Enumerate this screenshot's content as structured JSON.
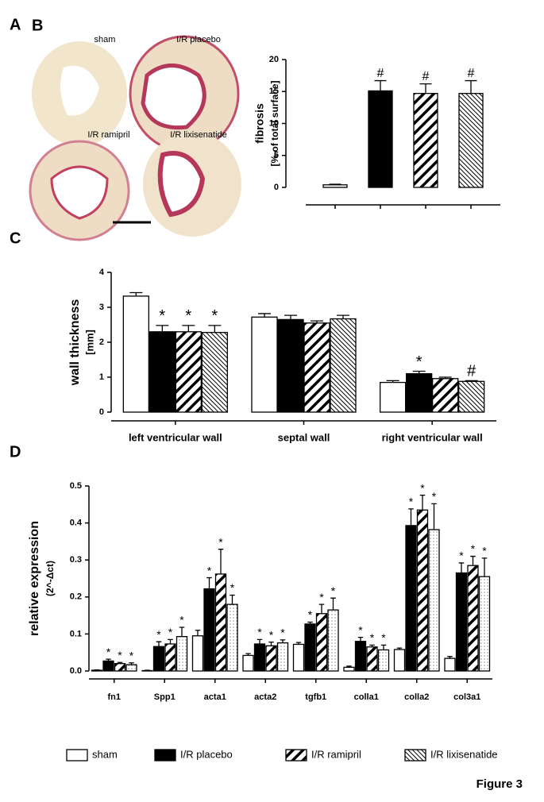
{
  "panel_a": {
    "panel_label": "A",
    "labels": [
      "sham",
      "I/R placebo",
      "I/R ramipril",
      "I/R lixisenatide"
    ]
  },
  "figure_label": "Figure 3",
  "chart_data": [
    {
      "type": "bar",
      "panel_label": "B",
      "ylabel": [
        "fibrosis",
        "[% of total surface]"
      ],
      "categories": [
        null
      ],
      "ylim": [
        0,
        20
      ],
      "yticks": [
        0,
        5,
        10,
        15,
        20
      ],
      "series": [
        {
          "pattern": "white",
          "values": [
            0.4
          ],
          "errors": [
            0.1
          ],
          "annotations": [
            null
          ]
        },
        {
          "pattern": "black",
          "values": [
            15.1
          ],
          "errors": [
            1.6
          ],
          "annotations": [
            "#"
          ]
        },
        {
          "pattern": "hatch",
          "values": [
            14.7
          ],
          "errors": [
            1.5
          ],
          "annotations": [
            "#"
          ]
        },
        {
          "pattern": "fine",
          "values": [
            14.7
          ],
          "errors": [
            2.0
          ],
          "annotations": [
            "#"
          ]
        }
      ]
    },
    {
      "type": "bar",
      "panel_label": "C",
      "ylabel": [
        "wall thickness",
        "[mm]"
      ],
      "categories": [
        "left ventricular wall",
        "septal wall",
        "right ventricular wall"
      ],
      "ylim": [
        0,
        4
      ],
      "yticks": [
        0,
        1,
        2,
        3,
        4
      ],
      "series": [
        {
          "name": "sham",
          "pattern": "white",
          "values": [
            3.32,
            2.72,
            0.85
          ],
          "errors": [
            0.1,
            0.1,
            0.05
          ],
          "annotations": [
            null,
            null,
            null
          ]
        },
        {
          "name": "I/R placebo",
          "pattern": "black",
          "values": [
            2.3,
            2.65,
            1.1
          ],
          "errors": [
            0.18,
            0.12,
            0.07
          ],
          "annotations": [
            "*",
            null,
            "*"
          ]
        },
        {
          "name": "I/R ramipril",
          "pattern": "hatch",
          "values": [
            2.3,
            2.55,
            0.96
          ],
          "errors": [
            0.18,
            0.06,
            0.04
          ],
          "annotations": [
            "*",
            null,
            null
          ]
        },
        {
          "name": "I/R lixisenatide",
          "pattern": "fine",
          "values": [
            2.28,
            2.67,
            0.88
          ],
          "errors": [
            0.2,
            0.1,
            0.02
          ],
          "annotations": [
            "*",
            null,
            "#"
          ]
        }
      ]
    },
    {
      "type": "bar",
      "panel_label": "D",
      "ylabel": [
        "relative expression",
        "(2^-Δct)"
      ],
      "categories": [
        "fn1",
        "Spp1",
        "acta1",
        "acta2",
        "tgfb1",
        "colla1",
        "colla2",
        "col3a1"
      ],
      "ylim": [
        0,
        0.5
      ],
      "yticks": [
        {
          "value": 0,
          "label": "0.0"
        },
        0.1,
        0.2,
        0.3,
        0.4,
        0.5
      ],
      "series": [
        {
          "pattern": "white",
          "values": [
            0.002,
            0.001,
            0.095,
            0.042,
            0.072,
            0.01,
            0.058,
            0.034
          ],
          "errors": [
            0.001,
            0.001,
            0.015,
            0.005,
            0.005,
            0.003,
            0.004,
            0.005
          ],
          "annotations": [
            null,
            null,
            null,
            null,
            null,
            null,
            null,
            null
          ]
        },
        {
          "pattern": "black",
          "values": [
            0.027,
            0.066,
            0.222,
            0.073,
            0.127,
            0.08,
            0.393,
            0.265
          ],
          "errors": [
            0.005,
            0.013,
            0.03,
            0.012,
            0.005,
            0.011,
            0.045,
            0.027
          ],
          "annotations": [
            "*",
            "*",
            "*",
            "*",
            "*",
            "*",
            "*",
            "*"
          ]
        },
        {
          "pattern": "hatch",
          "values": [
            0.02,
            0.073,
            0.262,
            0.068,
            0.155,
            0.065,
            0.435,
            0.285
          ],
          "errors": [
            0.003,
            0.012,
            0.067,
            0.01,
            0.025,
            0.005,
            0.04,
            0.025
          ],
          "annotations": [
            "*",
            "*",
            "*",
            "*",
            "*",
            "*",
            "*",
            "*"
          ]
        },
        {
          "pattern": "dots",
          "values": [
            0.017,
            0.093,
            0.18,
            0.076,
            0.165,
            0.057,
            0.382,
            0.255
          ],
          "errors": [
            0.005,
            0.025,
            0.025,
            0.008,
            0.032,
            0.013,
            0.07,
            0.05
          ],
          "annotations": [
            "*",
            "*",
            "*",
            "*",
            "*",
            "*",
            "*",
            "*"
          ]
        }
      ]
    }
  ]
}
